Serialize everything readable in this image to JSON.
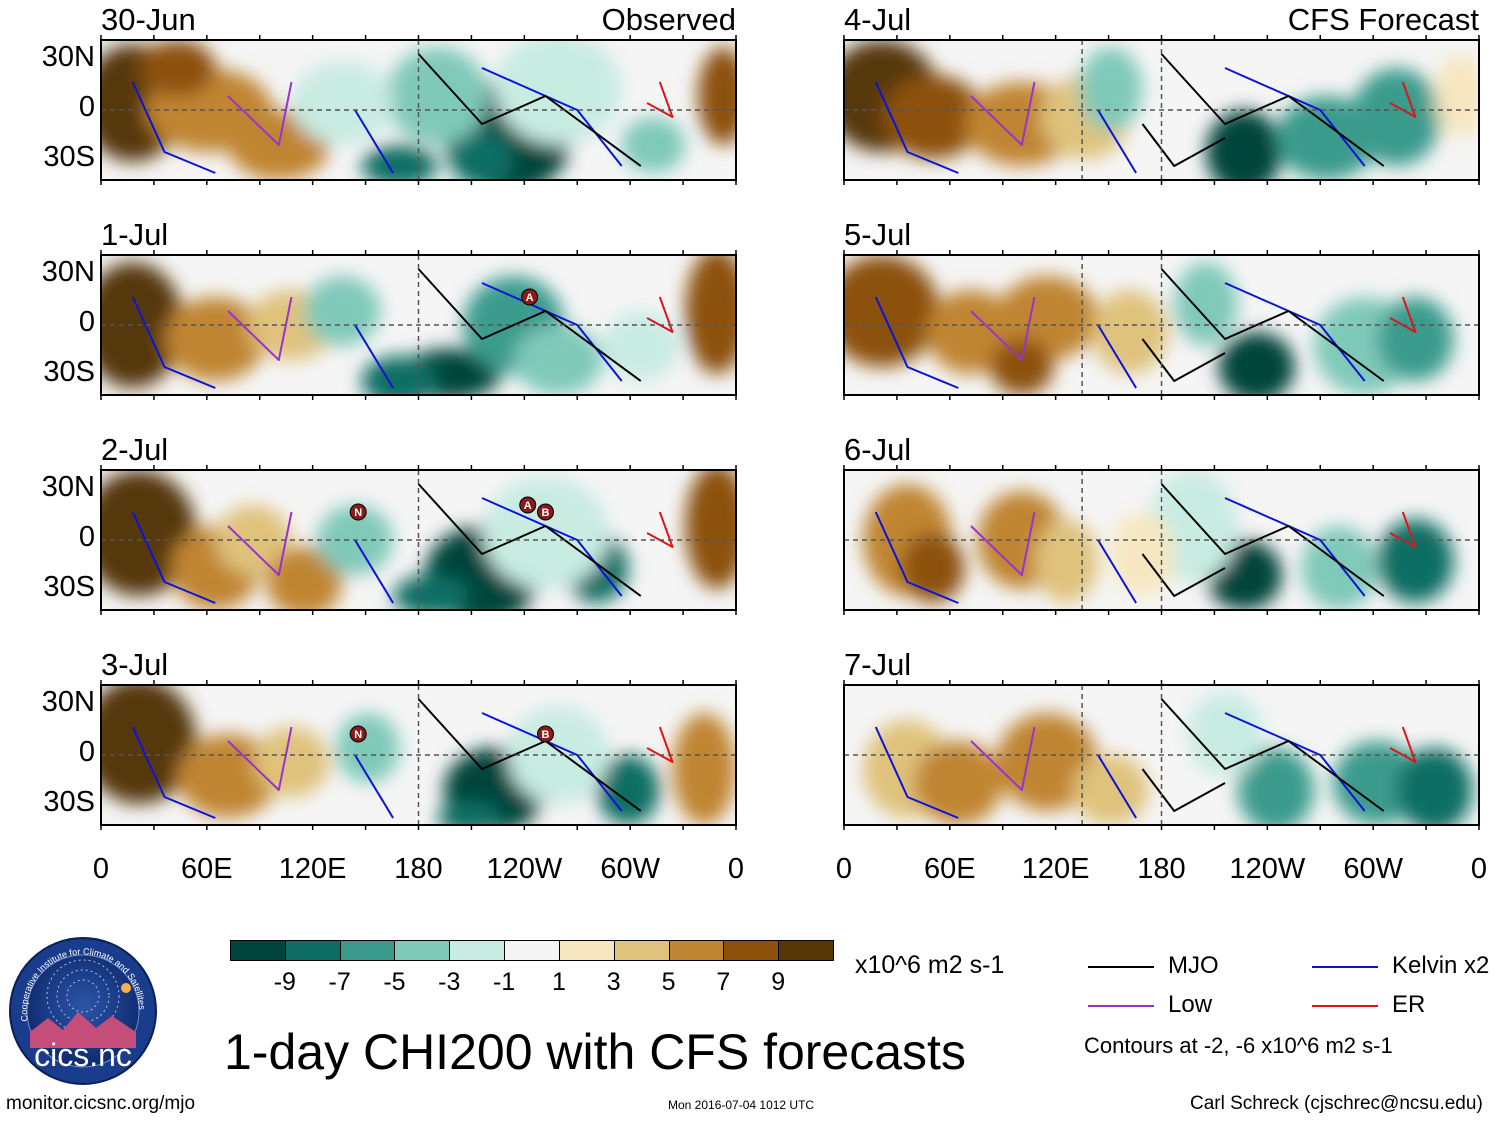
{
  "panels": [
    {
      "date": "30-Jun",
      "tag": "Observed",
      "storms": []
    },
    {
      "date": "1-Jul",
      "tag": "",
      "storms": [
        "A"
      ]
    },
    {
      "date": "2-Jul",
      "tag": "",
      "storms": [
        "N",
        "A",
        "B"
      ]
    },
    {
      "date": "3-Jul",
      "tag": "",
      "storms": [
        "N",
        "B"
      ]
    },
    {
      "date": "4-Jul",
      "tag": "CFS Forecast",
      "storms": []
    },
    {
      "date": "5-Jul",
      "tag": "",
      "storms": []
    },
    {
      "date": "6-Jul",
      "tag": "",
      "storms": []
    },
    {
      "date": "7-Jul",
      "tag": "",
      "storms": []
    }
  ],
  "lat_ticks": [
    "30N",
    "0",
    "30S"
  ],
  "lon_ticks": [
    "0",
    "60E",
    "120E",
    "180",
    "120W",
    "60W",
    "0"
  ],
  "colorbar": {
    "colors": [
      "#01443b",
      "#0f6e63",
      "#3a9b8d",
      "#7fc9b9",
      "#c8ebe2",
      "#f5f5f5",
      "#f6e7c0",
      "#dfc27c",
      "#c08533",
      "#8c510a",
      "#573708"
    ],
    "labels": [
      "-9",
      "-7",
      "-5",
      "-3",
      "-1",
      "1",
      "3",
      "5",
      "7",
      "9"
    ],
    "units": "x10^6 m2 s-1"
  },
  "legend": [
    {
      "name": "MJO",
      "color": "#000000"
    },
    {
      "name": "Kelvin x2",
      "color": "#0a14d8"
    },
    {
      "name": "Low",
      "color": "#9a32cd"
    },
    {
      "name": "ER",
      "color": "#e0141a"
    }
  ],
  "contour_note": "Contours at -2, -6 x10^6 m2 s-1",
  "title": "1-day CHI200 with CFS forecasts",
  "logo_text": "cics.nc",
  "logo_ring_text": "Cooperative Institute for Climate and Satellites",
  "footer": {
    "url": "monitor.cicsnc.org/mjo",
    "timestamp": "Mon 2016-07-04 1012 UTC",
    "credit": "Carl Schreck (cjschrec@ncsu.edu)"
  }
}
